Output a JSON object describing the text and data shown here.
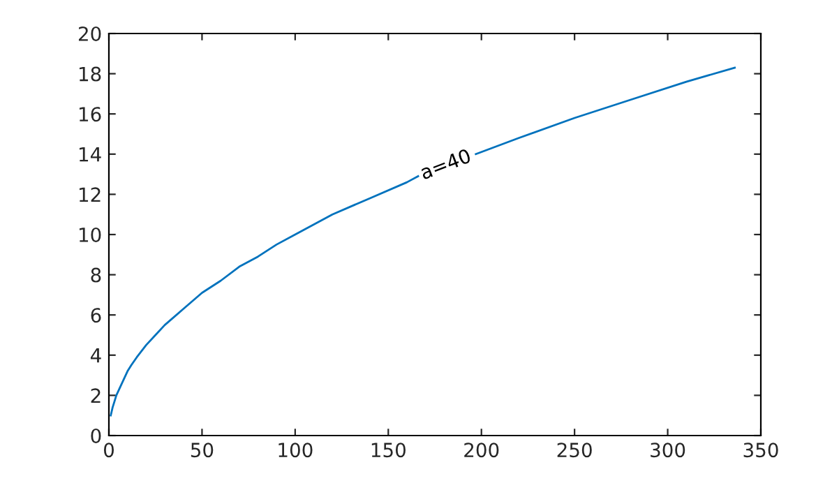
{
  "chart_data": {
    "type": "line",
    "x": [
      1,
      2,
      3,
      4,
      5,
      7,
      10,
      12,
      15,
      20,
      25,
      30,
      40,
      50,
      60,
      70,
      80,
      90,
      100,
      120,
      140,
      160,
      166,
      181,
      197,
      220,
      250,
      280,
      310,
      336
    ],
    "series": [
      {
        "color": "#0072bd",
        "values": [
          1,
          1.4,
          1.7,
          2,
          2.2,
          2.6,
          3.2,
          3.5,
          3.9,
          4.5,
          5,
          5.5,
          6.3,
          7.1,
          7.7,
          8.4,
          8.9,
          9.5,
          10,
          11,
          11.8,
          12.6,
          12.9,
          null,
          14.0,
          14.8,
          15.8,
          16.7,
          17.6,
          18.3
        ]
      }
    ],
    "annotations": [
      "a=40"
    ],
    "xlim": [
      0,
      350
    ],
    "xticks": [
      0,
      50,
      100,
      150,
      200,
      250,
      300,
      350
    ],
    "ylim": [
      0,
      20
    ],
    "yticks": [
      0,
      2,
      4,
      6,
      8,
      10,
      12,
      14,
      16,
      18,
      20
    ],
    "grid": false,
    "legend": false,
    "line_style": "solid",
    "marker": "none"
  }
}
